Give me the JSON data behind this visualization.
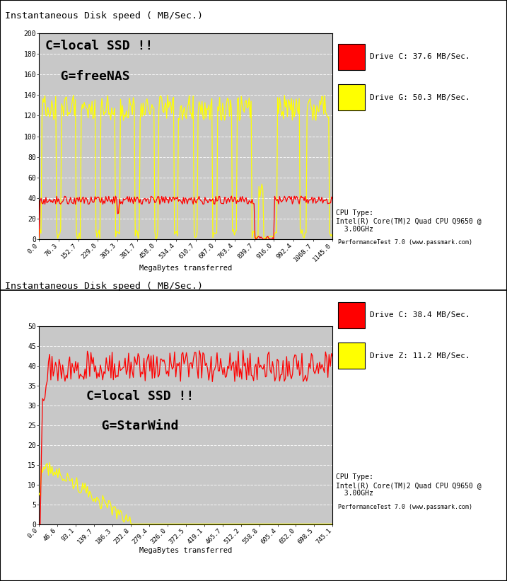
{
  "chart1": {
    "title": "Instantaneous Disk speed ( MB/Sec.)",
    "xlabel": "MegaBytes transferred",
    "ylim": [
      0,
      200
    ],
    "yticks": [
      0,
      20,
      40,
      60,
      80,
      100,
      120,
      140,
      160,
      180,
      200
    ],
    "xtick_labels": [
      "0.0",
      "76.3",
      "152.7",
      "229.0",
      "305.3",
      "381.7",
      "458.0",
      "534.4",
      "610.7",
      "687.0",
      "763.4",
      "839.7",
      "916.0",
      "992.4",
      "1068.7",
      "1145.0"
    ],
    "annot_line1": "C=local SSD !!",
    "annot_line2": "  G=freeNAS",
    "legend1_label": "Drive C: 37.6 MB/Sec.",
    "legend2_label": "Drive G: 50.3 MB/Sec.",
    "cpu_text": "CPU Type:\nIntel(R) Core(TM)2 Quad CPU Q9650 @\n  3.00GHz",
    "perf_text": "PerformanceTest 7.0 (www.passmark.com)"
  },
  "chart2": {
    "title": "Instantaneous Disk speed ( MB/Sec.)",
    "xlabel": "MegaBytes transferred",
    "ylim": [
      0,
      50
    ],
    "yticks": [
      0,
      5,
      10,
      15,
      20,
      25,
      30,
      35,
      40,
      45,
      50
    ],
    "xtick_labels": [
      "0.0",
      "46.6",
      "93.1",
      "139.7",
      "186.3",
      "232.8",
      "279.4",
      "326.0",
      "372.5",
      "419.1",
      "465.7",
      "512.2",
      "558.8",
      "605.4",
      "652.0",
      "698.5",
      "745.1"
    ],
    "annot_line1": "C=local SSD !!",
    "annot_line2": "  G=StarWind",
    "legend1_label": "Drive C: 38.4 MB/Sec.",
    "legend2_label": "Drive Z: 11.2 MB/Sec.",
    "cpu_text": "CPU Type:\nIntel(R) Core(TM)2 Quad CPU Q9650 @\n  3.00GHz",
    "perf_text": "PerformanceTest 7.0 (www.passmark.com)"
  },
  "plot_bg": "#c8c8c8",
  "fig_bg": "#ffffff",
  "red_color": "#ff0000",
  "yellow_color": "#ffff00",
  "grid_color": "#ffffff",
  "border_color": "#000000"
}
